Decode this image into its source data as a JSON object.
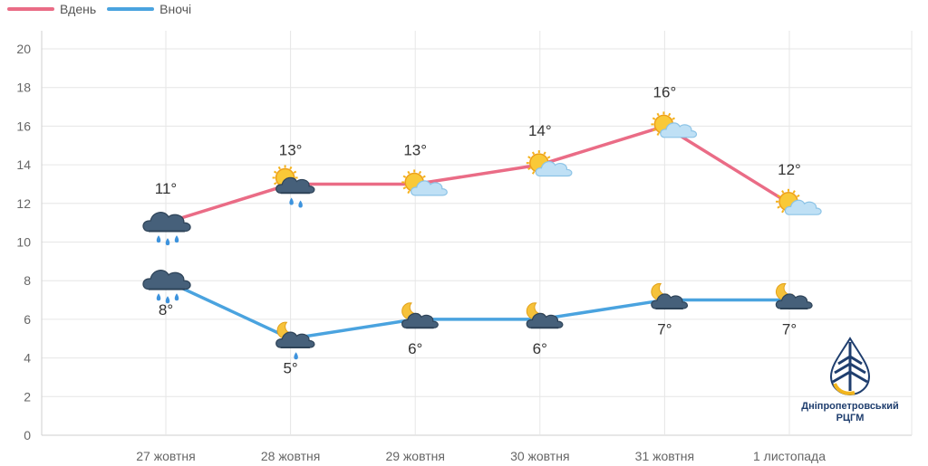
{
  "legend": {
    "day_label": "Вдень",
    "night_label": "Вночі"
  },
  "colors": {
    "day": "#ea6c86",
    "night": "#4aa3df",
    "grid": "#e6e6e6",
    "axis_text": "#666666",
    "label_text": "#333333"
  },
  "logo": {
    "line1": "Дніпропетровський",
    "line2": "РЦГМ"
  },
  "chart_data": {
    "type": "line",
    "categories": [
      "27 жовтня",
      "28 жовтня",
      "29 жовтня",
      "30 жовтня",
      "31 жовтня",
      "1 листопада"
    ],
    "ylim": [
      0,
      20
    ],
    "yticks": [
      0,
      2,
      4,
      6,
      8,
      10,
      12,
      14,
      16,
      18,
      20
    ],
    "grid": true,
    "legend_position": "top-left",
    "series": [
      {
        "name": "Вдень",
        "color": "#ea6c86",
        "values": [
          11,
          13,
          13,
          14,
          16,
          12
        ],
        "labels": [
          "11°",
          "13°",
          "13°",
          "14°",
          "16°",
          "12°"
        ],
        "icons": [
          "rain-cloud-icon",
          "sun-rain-cloud-icon",
          "sun-cloud-icon",
          "sun-cloud-icon",
          "sun-cloud-icon",
          "sun-cloud-icon"
        ]
      },
      {
        "name": "Вночі",
        "color": "#4aa3df",
        "values": [
          8,
          5,
          6,
          6,
          7,
          7
        ],
        "labels": [
          "8°",
          "5°",
          "6°",
          "6°",
          "7°",
          "7°"
        ],
        "icons": [
          "rain-cloud-icon",
          "moon-rain-cloud-icon",
          "moon-cloud-icon",
          "moon-cloud-icon",
          "moon-cloud-icon",
          "moon-cloud-icon"
        ]
      }
    ]
  }
}
